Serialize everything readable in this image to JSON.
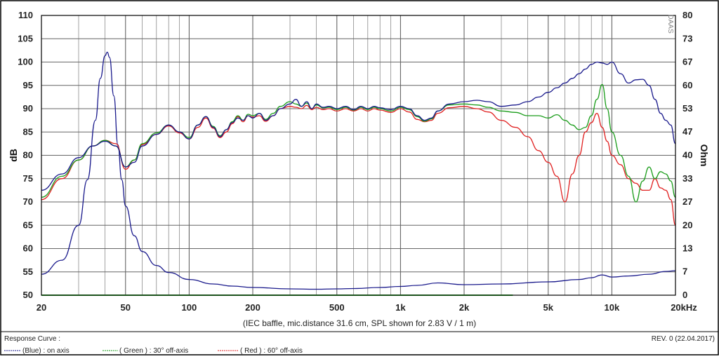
{
  "chart_data": {
    "type": "line",
    "xscale": "log",
    "xlim": [
      20,
      20000
    ],
    "ylim": [
      50,
      110
    ],
    "y2lim": [
      0,
      80
    ],
    "ylabel": "dB",
    "y2label": "Ohm",
    "x_ticks": [
      {
        "value": 20,
        "label": "20"
      },
      {
        "value": 50,
        "label": "50"
      },
      {
        "value": 100,
        "label": "100"
      },
      {
        "value": 200,
        "label": "200"
      },
      {
        "value": 500,
        "label": "500"
      },
      {
        "value": 1000,
        "label": "1k"
      },
      {
        "value": 2000,
        "label": "2k"
      },
      {
        "value": 5000,
        "label": "5k"
      },
      {
        "value": 10000,
        "label": "10k"
      },
      {
        "value": 20000,
        "label": "20kHz"
      }
    ],
    "y_ticks": [
      110,
      105,
      100,
      95,
      90,
      85,
      80,
      75,
      70,
      65,
      60,
      55,
      50
    ],
    "y2_ticks": [
      {
        "value": 80,
        "label": "80"
      },
      {
        "value": 73.3,
        "label": "73"
      },
      {
        "value": 66.7,
        "label": "67"
      },
      {
        "value": 60,
        "label": "60"
      },
      {
        "value": 53.3,
        "label": "53"
      },
      {
        "value": 46.7,
        "label": "47"
      },
      {
        "value": 40,
        "label": "40"
      },
      {
        "value": 33.3,
        "label": "33"
      },
      {
        "value": 26.7,
        "label": "27"
      },
      {
        "value": 20,
        "label": "20"
      },
      {
        "value": 13.3,
        "label": "13"
      },
      {
        "value": 6.7,
        "label": "7"
      },
      {
        "value": 0,
        "label": "0"
      }
    ],
    "caption": "(IEC baffle, mic.distance 31.6 cm, SPL shown for 2.83 V / 1 m)",
    "watermark": "DAAS",
    "series": [
      {
        "name": "(Blue)  : on axis",
        "color": "#1a1a8c",
        "axis": "left",
        "x": [
          20,
          25,
          30,
          35,
          40,
          45,
          50,
          55,
          60,
          70,
          80,
          90,
          100,
          110,
          120,
          130,
          140,
          150,
          160,
          170,
          180,
          190,
          200,
          215,
          230,
          250,
          270,
          300,
          320,
          340,
          360,
          380,
          400,
          430,
          460,
          500,
          550,
          600,
          650,
          700,
          750,
          800,
          900,
          1000,
          1100,
          1200,
          1300,
          1400,
          1500,
          1700,
          2000,
          2300,
          2600,
          3000,
          3500,
          4000,
          4500,
          5000,
          5500,
          6000,
          6500,
          7000,
          7500,
          8000,
          8500,
          9000,
          9500,
          10000,
          11000,
          12000,
          13000,
          14000,
          15000,
          16000,
          17000,
          18000,
          19000,
          20000
        ],
        "y": [
          72.5,
          76,
          79.5,
          82,
          83,
          82,
          77.5,
          78.5,
          82,
          84.5,
          86.5,
          85,
          83.5,
          86.5,
          88.3,
          86,
          84,
          85.5,
          87,
          88,
          87.5,
          88.5,
          88,
          89,
          87.5,
          88.5,
          90,
          91,
          92,
          90.5,
          91.5,
          90,
          91,
          90.3,
          90.5,
          90,
          90.5,
          89.8,
          90.5,
          90,
          90.5,
          90.2,
          89.8,
          90.5,
          90,
          88.5,
          87.5,
          88,
          89.5,
          91,
          91.5,
          91.8,
          91.5,
          90.5,
          90.8,
          91.5,
          92.5,
          93.5,
          94.5,
          95.5,
          96.5,
          97.5,
          98.5,
          99.5,
          100,
          99.8,
          99.5,
          100,
          97.5,
          95.5,
          96.2,
          96.3,
          95,
          92,
          89,
          87.5,
          86.5,
          82.5
        ]
      },
      {
        "name": "( Green ) : 30° off-axis",
        "color": "#1a9c1a",
        "axis": "left",
        "x": [
          20,
          25,
          30,
          35,
          40,
          45,
          50,
          55,
          60,
          70,
          80,
          90,
          100,
          110,
          120,
          130,
          140,
          150,
          160,
          170,
          180,
          190,
          200,
          215,
          230,
          250,
          270,
          300,
          320,
          340,
          360,
          380,
          400,
          430,
          460,
          500,
          550,
          600,
          650,
          700,
          750,
          800,
          900,
          1000,
          1100,
          1200,
          1300,
          1400,
          1500,
          1700,
          2000,
          2300,
          2600,
          3000,
          3500,
          4000,
          4500,
          5000,
          5500,
          6000,
          6500,
          7000,
          7500,
          8000,
          8500,
          9000,
          9500,
          10000,
          11000,
          12000,
          13000,
          14000,
          15000,
          16000,
          17000,
          18000,
          19000,
          20000
        ],
        "y": [
          71,
          75.5,
          79,
          82,
          83.2,
          82,
          77.5,
          79,
          82.5,
          84.8,
          86.5,
          85,
          83.8,
          86.5,
          88.3,
          86.2,
          84.2,
          85.5,
          87.2,
          88.5,
          87.5,
          88.8,
          88.5,
          89,
          87.7,
          89,
          90.5,
          91.5,
          91,
          90.5,
          91.2,
          90,
          90.8,
          90.2,
          90.3,
          89.8,
          90.3,
          89.7,
          90.3,
          89.8,
          90.3,
          90,
          89.5,
          90.3,
          89.8,
          88.3,
          87.3,
          87.8,
          89.5,
          90.8,
          91,
          90.8,
          90.3,
          89.5,
          89.2,
          88.5,
          88.5,
          88,
          88.7,
          87.5,
          86.5,
          85.5,
          86,
          88.5,
          92,
          95.2,
          90,
          85,
          80,
          75.5,
          70,
          74.5,
          77.5,
          75,
          76.5,
          76,
          74.5,
          71
        ]
      },
      {
        "name": "( Red ) : 60° off-axis",
        "color": "#e02020",
        "axis": "left",
        "x": [
          20,
          25,
          30,
          35,
          40,
          45,
          50,
          55,
          60,
          70,
          80,
          90,
          100,
          110,
          120,
          130,
          140,
          150,
          160,
          170,
          180,
          190,
          200,
          215,
          230,
          250,
          270,
          300,
          320,
          340,
          360,
          380,
          400,
          430,
          460,
          500,
          550,
          600,
          650,
          700,
          750,
          800,
          900,
          1000,
          1100,
          1200,
          1300,
          1400,
          1500,
          1700,
          2000,
          2300,
          2600,
          3000,
          3500,
          4000,
          4500,
          5000,
          5500,
          6000,
          6500,
          7000,
          7500,
          8000,
          8500,
          9000,
          9500,
          10000,
          11000,
          12000,
          13000,
          14000,
          15000,
          16000,
          17000,
          18000,
          19000,
          20000
        ],
        "y": [
          70.5,
          75,
          79,
          82,
          83.2,
          82.5,
          77,
          79,
          82.3,
          84.5,
          86.3,
          84.8,
          83.5,
          86,
          88,
          85.8,
          83.8,
          85,
          86.8,
          88.3,
          87.2,
          88.5,
          88.2,
          88.5,
          87.3,
          88.5,
          90,
          90.5,
          90.3,
          90,
          90.7,
          89.8,
          90.3,
          89.8,
          90,
          89.5,
          90,
          89.5,
          90,
          89.5,
          90,
          89.7,
          89.2,
          90,
          89.3,
          87.7,
          87.2,
          87.5,
          89,
          90.2,
          90.5,
          90,
          89.3,
          87.5,
          86,
          84,
          81,
          78.5,
          75.5,
          70,
          76,
          80,
          85,
          87,
          89,
          86,
          83,
          80,
          78,
          75,
          74,
          72.5,
          72.5,
          75,
          73,
          72.5,
          70.5,
          65
        ]
      },
      {
        "name": "impedance",
        "color": "#1a1a8c",
        "axis": "right",
        "x": [
          20,
          25,
          30,
          33,
          36,
          38,
          40,
          41,
          42,
          44,
          46,
          48,
          50,
          55,
          60,
          70,
          80,
          100,
          130,
          160,
          200,
          300,
          400,
          500,
          600,
          800,
          1000,
          1200,
          1500,
          2000,
          3000,
          5000,
          7000,
          8000,
          9000,
          10000,
          12000,
          15000,
          18000,
          20000
        ],
        "y": [
          6,
          10,
          20,
          33,
          50,
          62,
          68.5,
          69.5,
          68,
          57,
          43,
          33,
          25.5,
          17,
          12.5,
          8.5,
          6.5,
          4.5,
          3.2,
          2.6,
          2.2,
          1.8,
          1.7,
          1.8,
          1.9,
          2.2,
          2.5,
          2.8,
          3.5,
          3.0,
          3.2,
          3.8,
          4.5,
          5.0,
          5.8,
          5.2,
          5.5,
          6.0,
          6.8,
          7.0
        ]
      },
      {
        "name": "baseline",
        "color": "#44cc44",
        "axis": "right",
        "x": [
          20,
          3400
        ],
        "y": [
          0,
          0
        ]
      }
    ]
  },
  "footer": {
    "response_curve_label": "Response Curve :",
    "legend_blue": "(Blue)  : on axis",
    "legend_green": "( Green ) : 30° off-axis",
    "legend_red": "( Red ) : 60° off-axis",
    "revision": "REV. 0 (22.04.2017)"
  }
}
